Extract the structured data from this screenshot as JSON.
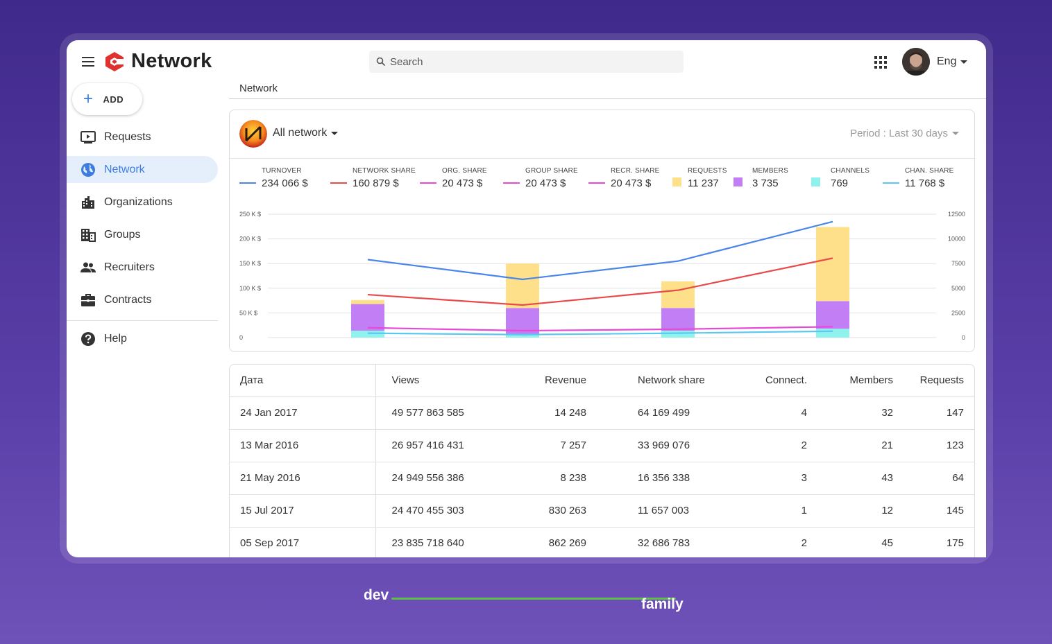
{
  "header": {
    "logo_text": "Network",
    "search_placeholder": "Search",
    "language": "Eng"
  },
  "sidebar": {
    "add_label": "ADD",
    "items": [
      {
        "label": "Requests",
        "icon": "requests-icon"
      },
      {
        "label": "Network",
        "icon": "globe-icon",
        "active": true
      },
      {
        "label": "Organizations",
        "icon": "city-icon"
      },
      {
        "label": "Groups",
        "icon": "building-icon"
      },
      {
        "label": "Recruiters",
        "icon": "people-icon"
      },
      {
        "label": "Contracts",
        "icon": "briefcase-icon"
      }
    ],
    "help_label": "Help"
  },
  "breadcrumb": "Network",
  "chart_card": {
    "network_select": "All network",
    "period": "Period : Last 30 days",
    "legend": [
      {
        "label": "TURNOVER",
        "value": "234 066 $",
        "color": "#4a86e8",
        "kind": "line"
      },
      {
        "label": "NETWORK SHARE",
        "value": "160 879 $",
        "color": "#e84a4a",
        "kind": "line"
      },
      {
        "label": "ORG. SHARE",
        "value": "20 473 $",
        "color": "#e64ad6",
        "kind": "line"
      },
      {
        "label": "GROUP SHARE",
        "value": "20 473 $",
        "color": "#e64ad6",
        "kind": "line"
      },
      {
        "label": "RECR. SHARE",
        "value": "20 473 $",
        "color": "#e64ad6",
        "kind": "line"
      },
      {
        "label": "REQUESTS",
        "value": "11 237",
        "color": "#ffe08a",
        "kind": "square"
      },
      {
        "label": "MEMBERS",
        "value": "3 735",
        "color": "#c17ef5",
        "kind": "square"
      },
      {
        "label": "CHANNELS",
        "value": "769",
        "color": "#8ff2ec",
        "kind": "square"
      },
      {
        "label": "CHAN. SHARE",
        "value": "11 768 $",
        "color": "#5ac8f0",
        "kind": "line"
      }
    ]
  },
  "chart_data": {
    "type": "bar",
    "categories": [
      "",
      "",
      "",
      ""
    ],
    "left_axis": {
      "ticks": [
        "0",
        "50 K $",
        "100 K $",
        "150 K $",
        "200 K $",
        "250 K $"
      ],
      "range": [
        0,
        250000
      ]
    },
    "right_axis": {
      "ticks": [
        "0",
        "2500",
        "5000",
        "7500",
        "10000",
        "12500"
      ],
      "range": [
        0,
        12500
      ]
    },
    "stacked_bars": [
      {
        "name": "CHANNELS",
        "color": "#8ff2ec",
        "values": [
          700,
          300,
          700,
          900
        ]
      },
      {
        "name": "MEMBERS",
        "color": "#c17ef5",
        "values": [
          2700,
          2700,
          2300,
          2800
        ]
      },
      {
        "name": "REQUESTS",
        "color": "#ffe08a",
        "values": [
          400,
          4500,
          2700,
          7500
        ]
      }
    ],
    "lines": [
      {
        "name": "TURNOVER",
        "color": "#4a86e8",
        "values": [
          158000,
          118000,
          155000,
          235000
        ]
      },
      {
        "name": "NETWORK SHARE",
        "color": "#e84a4a",
        "values": [
          87000,
          66000,
          96000,
          161000
        ]
      },
      {
        "name": "ORG. SHARE",
        "color": "#e64ad6",
        "values": [
          20000,
          14000,
          17000,
          22000
        ]
      },
      {
        "name": "CHAN. SHARE",
        "color": "#5ac8f0",
        "values": [
          9000,
          6000,
          9000,
          13000
        ]
      }
    ],
    "grid": true
  },
  "table": {
    "columns": [
      "Дата",
      "Views",
      "Revenue",
      "Network share",
      "Connect.",
      "Members",
      "Requests"
    ],
    "rows": [
      [
        "24 Jan 2017",
        "49 577 863 585",
        "14 248",
        "64 169 499",
        "4",
        "32",
        "147"
      ],
      [
        "13 Mar 2016",
        "26 957 416 431",
        "7 257",
        "33 969 076",
        "2",
        "21",
        "123"
      ],
      [
        "21 May 2016",
        "24 949 556 386",
        "8 238",
        "16 356 338",
        "3",
        "43",
        "64"
      ],
      [
        "15 Jul 2017",
        "24 470 455 303",
        "830 263",
        "11 657 003",
        "1",
        "12",
        "145"
      ],
      [
        "05 Sep 2017",
        "23 835 718 640",
        "862 269",
        "32 686 783",
        "2",
        "45",
        "175"
      ]
    ]
  },
  "brand": {
    "dev": "dev",
    "family": "family"
  }
}
